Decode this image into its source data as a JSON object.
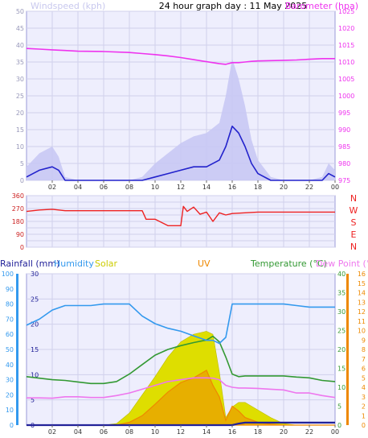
{
  "header": {
    "title": "24 hour graph day : 11 May 2025",
    "wind_label": "Windspeed (kph)",
    "baro_label": "Barometer (hpa)"
  },
  "bottom_header": {
    "rainfall": "Rainfall (mm)",
    "humidity": "Humidity",
    "solar": "Solar",
    "uv": "UV",
    "temperature": "Temperature (°C)",
    "dewpoint": "Dew Point (°C)"
  },
  "colors": {
    "wind_avg": "#2222cc",
    "gust": "#c8c8f4",
    "pressure": "#ee33ee",
    "direction": "#ee2222",
    "humidity": "#3399ee",
    "temperature": "#339933",
    "dewpoint": "#ee77ee",
    "solar": "#dede00",
    "uv": "#ee8800",
    "rain": "#222299",
    "plot_bg": "#eeeefd",
    "grid": "#d0d0ec"
  },
  "chart_data": [
    {
      "type": "line",
      "title": "24 hour graph day : 11 May 2025",
      "xlabel": "",
      "x_tick_labels": [
        "02",
        "04",
        "06",
        "08",
        "10",
        "12",
        "14",
        "16",
        "18",
        "20",
        "22",
        "00"
      ],
      "x": [
        0,
        1,
        2,
        2.5,
        3,
        4,
        6,
        8,
        9,
        10,
        11,
        12,
        13,
        14,
        15,
        15.5,
        16,
        16.5,
        17,
        17.5,
        18,
        19,
        20,
        21,
        22,
        23,
        23.5,
        24
      ],
      "grid": true,
      "left_axis": {
        "label": "Windspeed (kph)",
        "ylim": [
          0,
          50
        ],
        "ticks": [
          0,
          5,
          10,
          15,
          20,
          25,
          30,
          35,
          40,
          45,
          50
        ]
      },
      "right_axis": {
        "label": "Barometer (hpa)",
        "ylim": [
          975,
          1025
        ],
        "ticks": [
          975,
          980,
          985,
          990,
          995,
          1000,
          1005,
          1010,
          1015,
          1020,
          1025
        ]
      },
      "series": [
        {
          "name": "Windspeed",
          "axis": "left",
          "values": [
            1,
            3,
            4,
            3,
            0,
            0,
            0,
            0,
            0,
            1,
            2,
            3,
            4,
            4,
            6,
            10,
            16,
            14,
            10,
            5,
            2,
            0,
            0,
            0,
            0,
            0,
            2,
            1
          ]
        },
        {
          "name": "Gust",
          "axis": "left",
          "values": [
            4,
            8,
            10,
            7,
            1,
            0,
            0,
            0,
            1,
            5,
            8,
            11,
            13,
            14,
            17,
            25,
            36,
            30,
            22,
            12,
            6,
            1,
            0,
            0,
            0,
            1,
            5,
            3
          ]
        },
        {
          "name": "Barometer",
          "axis": "right",
          "values": [
            1014,
            1013.8,
            1013.6,
            1013.5,
            1013.4,
            1013.2,
            1013.1,
            1012.8,
            1012.5,
            1012.2,
            1011.8,
            1011.3,
            1010.7,
            1010.1,
            1009.5,
            1009.3,
            1009.8,
            1009.8,
            1010.0,
            1010.2,
            1010.3,
            1010.4,
            1010.5,
            1010.6,
            1010.8,
            1011.0,
            1011.0,
            1011.0
          ]
        }
      ]
    },
    {
      "type": "line",
      "title": "",
      "x": [
        0,
        1,
        2,
        3,
        6,
        9,
        9.3,
        10,
        11,
        12,
        12.2,
        12.5,
        13,
        13.5,
        14,
        14.5,
        15,
        15.5,
        16,
        17,
        18,
        20,
        22,
        24
      ],
      "grid": true,
      "ylim": [
        0,
        360
      ],
      "yticks": [
        0,
        45,
        90,
        135,
        180,
        225,
        270,
        315,
        360
      ],
      "direction_labels": [
        "N",
        "W",
        "S",
        "E",
        "N"
      ],
      "series": [
        {
          "name": "Wind direction",
          "values": [
            250,
            260,
            265,
            255,
            255,
            255,
            195,
            195,
            150,
            150,
            285,
            250,
            280,
            230,
            245,
            180,
            240,
            225,
            235,
            240,
            245,
            245,
            245,
            245
          ]
        }
      ]
    },
    {
      "type": "line",
      "title": "",
      "x_tick_labels": [
        "02",
        "04",
        "06",
        "08",
        "10",
        "12",
        "14",
        "16",
        "18",
        "20",
        "22",
        "00"
      ],
      "x": [
        0,
        1,
        2,
        3,
        4,
        5,
        6,
        7,
        8,
        9,
        10,
        11,
        12,
        13,
        14,
        14.5,
        15,
        15.5,
        16,
        16.5,
        17,
        18,
        19,
        20,
        21,
        22,
        23,
        24
      ],
      "grid": true,
      "axes": {
        "rainfall_mm": {
          "ylim": [
            0,
            30
          ],
          "ticks": [
            0,
            5,
            10,
            15,
            20,
            25,
            30
          ]
        },
        "humidity_pct": {
          "ylim": [
            0,
            100
          ],
          "ticks": [
            0,
            10,
            20,
            30,
            40,
            50,
            60,
            70,
            80,
            90,
            100
          ]
        },
        "temperature_c": {
          "ylim": [
            0,
            40
          ],
          "ticks": [
            0,
            5,
            10,
            15,
            20,
            25,
            30,
            35,
            40
          ]
        },
        "uv_index": {
          "ylim": [
            0,
            16
          ],
          "ticks": [
            0,
            1,
            2,
            3,
            4,
            5,
            6,
            7,
            8,
            9,
            10,
            11,
            12,
            13,
            14,
            15,
            16
          ]
        }
      },
      "series": [
        {
          "name": "Humidity",
          "axis": "humidity_pct",
          "values": [
            66,
            70,
            76,
            79,
            79,
            79,
            80,
            80,
            80,
            72,
            67,
            64,
            62,
            59,
            56,
            56,
            54,
            58,
            80,
            80,
            80,
            80,
            80,
            80,
            79,
            78,
            78,
            78
          ]
        },
        {
          "name": "Temperature",
          "axis": "temperature_c",
          "values": [
            12.8,
            12.4,
            12.0,
            11.8,
            11.4,
            11.0,
            11.0,
            11.5,
            13.5,
            16.0,
            18.5,
            20.0,
            21.0,
            21.8,
            22.5,
            23.5,
            22.0,
            18.0,
            13.5,
            12.8,
            13.0,
            13.0,
            13.0,
            13.0,
            12.7,
            12.5,
            11.8,
            11.5
          ]
        },
        {
          "name": "Dew Point",
          "axis": "temperature_c",
          "values": [
            7.2,
            7.2,
            7.1,
            7.5,
            7.5,
            7.3,
            7.3,
            7.8,
            8.5,
            9.5,
            10.5,
            11.5,
            12.0,
            12.5,
            12.5,
            12.4,
            12.0,
            10.5,
            10.0,
            9.8,
            9.8,
            9.7,
            9.5,
            9.3,
            8.5,
            8.5,
            7.8,
            7.3
          ]
        },
        {
          "name": "Solar",
          "axis": "humidity_pct",
          "values": [
            0,
            0,
            0,
            0,
            0,
            0,
            0,
            1,
            8,
            20,
            32,
            45,
            55,
            60,
            62,
            60,
            35,
            5,
            12,
            15,
            15,
            10,
            5,
            1,
            0,
            0,
            0,
            0
          ]
        },
        {
          "name": "UV",
          "axis": "uv_index",
          "values": [
            0,
            0,
            0,
            0,
            0,
            0,
            0,
            0,
            0.3,
            1.0,
            2.2,
            3.5,
            4.5,
            5.0,
            5.8,
            4.2,
            3.0,
            0.5,
            2.0,
            1.5,
            0.8,
            0.3,
            0.1,
            0,
            0,
            0,
            0,
            0
          ]
        },
        {
          "name": "Rainfall",
          "axis": "rainfall_mm",
          "values": [
            0,
            0,
            0,
            0,
            0,
            0,
            0,
            0,
            0,
            0,
            0,
            0,
            0,
            0,
            0,
            0,
            0,
            0,
            0,
            0.3,
            0.5,
            0.5,
            0.5,
            0.5,
            0.5,
            0.5,
            0.5,
            0.5
          ]
        }
      ]
    }
  ]
}
